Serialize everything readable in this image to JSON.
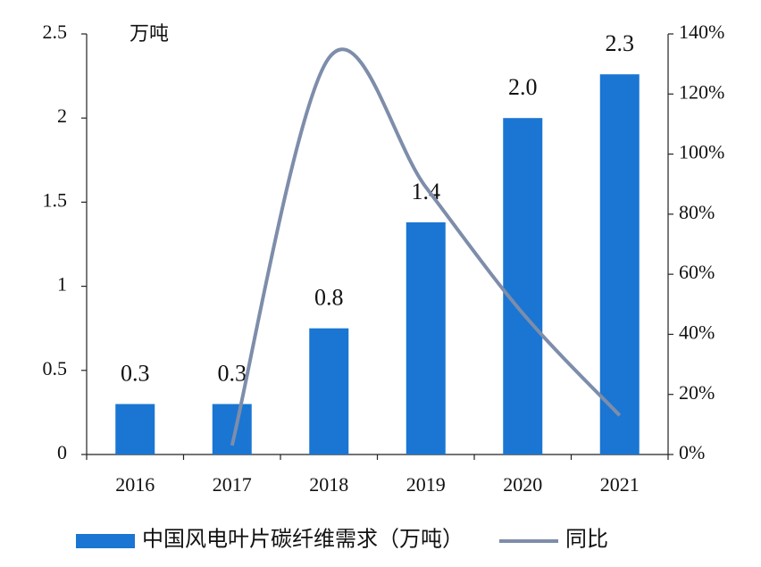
{
  "chart_data": {
    "type": "bar-line",
    "unit_label": "万吨",
    "categories": [
      "2016",
      "2017",
      "2018",
      "2019",
      "2020",
      "2021"
    ],
    "series": [
      {
        "name": "中国风电叶片碳纤维需求（万吨）",
        "type": "bar",
        "color": "#1a76d2",
        "values": [
          0.3,
          0.3,
          0.75,
          1.38,
          2.0,
          2.26
        ],
        "value_labels": [
          "0.3",
          "0.3",
          "0.8",
          "1.4",
          "2.0",
          "2.3"
        ]
      },
      {
        "name": "同比",
        "type": "line",
        "axis": "y2",
        "color": "#7d8daa",
        "values": [
          null,
          3,
          132,
          89,
          47,
          13
        ]
      }
    ],
    "ylim": [
      0,
      2.5
    ],
    "yticks": [
      0,
      0.5,
      1,
      1.5,
      2,
      2.5
    ],
    "y2lim": [
      0,
      140
    ],
    "y2ticks": [
      {
        "value": 0,
        "label": "0%"
      },
      {
        "value": 20,
        "label": "20%"
      },
      {
        "value": 40,
        "label": "40%"
      },
      {
        "value": 60,
        "label": "60%"
      },
      {
        "value": 80,
        "label": "80%"
      },
      {
        "value": 100,
        "label": "100%"
      },
      {
        "value": 120,
        "label": "120%"
      },
      {
        "value": 140,
        "label": "140%"
      }
    ],
    "legend": "bottom"
  }
}
